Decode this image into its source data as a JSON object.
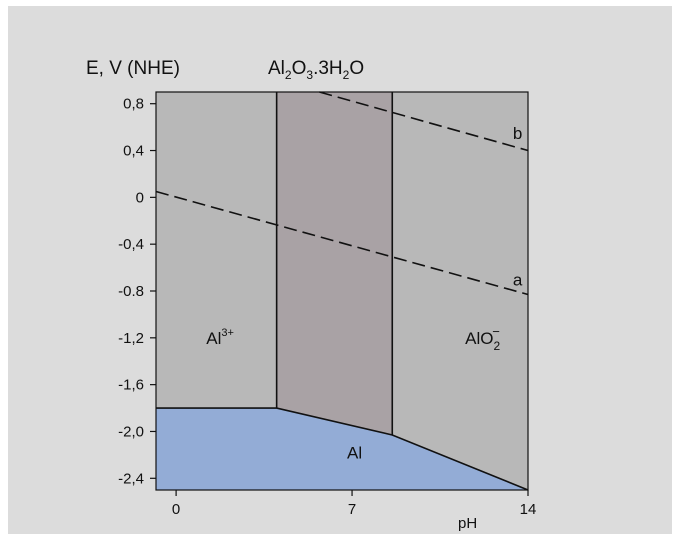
{
  "chart_data": {
    "type": "area",
    "title_ylabel": "E, V (NHE)",
    "title_oxide": {
      "main": "Al",
      "sub1": "2",
      "o": "O",
      "sub2": "3",
      "rest": ".3H",
      "sub3": "2",
      "end": "O"
    },
    "xlabel": "pH",
    "xlim": [
      -0.8,
      14
    ],
    "ylim": [
      -2.5,
      0.9
    ],
    "xticks": [
      0,
      7,
      14
    ],
    "xtick_labels": [
      "0",
      "7",
      "14"
    ],
    "yticks": [
      0.8,
      0.4,
      0,
      -0.4,
      -0.8,
      -1.2,
      -1.6,
      -2.0,
      -2.4
    ],
    "ytick_labels": [
      "0,8",
      "0,4",
      "0",
      "-0,4",
      "-0.8",
      "-1,2",
      "-1,6",
      "-2,0",
      "-2,4"
    ],
    "regions": [
      {
        "name": "Al3+",
        "label": "Al",
        "sup": "3+",
        "label_at": [
          1.2,
          -1.2
        ],
        "color": "#b8b8b8",
        "polygon": [
          [
            -0.8,
            0.9
          ],
          [
            4.0,
            0.9
          ],
          [
            4.0,
            -1.8
          ],
          [
            -0.8,
            -1.8
          ]
        ]
      },
      {
        "name": "Al2O3.3H2O",
        "label": "",
        "color": "#a9a2a5",
        "polygon": [
          [
            4.0,
            0.9
          ],
          [
            8.6,
            0.9
          ],
          [
            8.6,
            -2.03
          ],
          [
            4.0,
            -1.8
          ]
        ]
      },
      {
        "name": "AlO2-",
        "label": "AlO",
        "sub": "2",
        "sup": "−",
        "label_at": [
          11.5,
          -1.2
        ],
        "color": "#b8b8b8",
        "polygon": [
          [
            8.6,
            0.9
          ],
          [
            14,
            0.9
          ],
          [
            14,
            -2.5
          ],
          [
            8.6,
            -2.03
          ]
        ]
      },
      {
        "name": "Al",
        "label": "Al",
        "label_at": [
          6.8,
          -2.18
        ],
        "color": "#93acd6",
        "polygon": [
          [
            -0.8,
            -1.8
          ],
          [
            4.0,
            -1.8
          ],
          [
            8.6,
            -2.03
          ],
          [
            14,
            -2.5
          ],
          [
            -0.8,
            -2.5
          ]
        ]
      }
    ],
    "boundaries": [
      {
        "name": "Al3+/oxide",
        "points": [
          [
            4.0,
            0.9
          ],
          [
            4.0,
            -1.8
          ]
        ]
      },
      {
        "name": "oxide/AlO2-",
        "points": [
          [
            8.6,
            0.9
          ],
          [
            8.6,
            -2.03
          ]
        ]
      },
      {
        "name": "Al lower boundary",
        "points": [
          [
            -0.8,
            -1.8
          ],
          [
            4.0,
            -1.8
          ],
          [
            8.6,
            -2.03
          ],
          [
            14,
            -2.5
          ]
        ]
      }
    ],
    "lines": [
      {
        "name": "a",
        "label": "a",
        "style": "dashed",
        "points": [
          [
            -0.8,
            0.05
          ],
          [
            14,
            -0.83
          ]
        ],
        "label_at": [
          13.4,
          -0.7
        ]
      },
      {
        "name": "b",
        "label": "b",
        "style": "dashed",
        "points": [
          [
            5.7,
            0.9
          ],
          [
            14,
            0.4
          ]
        ],
        "label_at": [
          13.4,
          0.55
        ]
      }
    ]
  }
}
